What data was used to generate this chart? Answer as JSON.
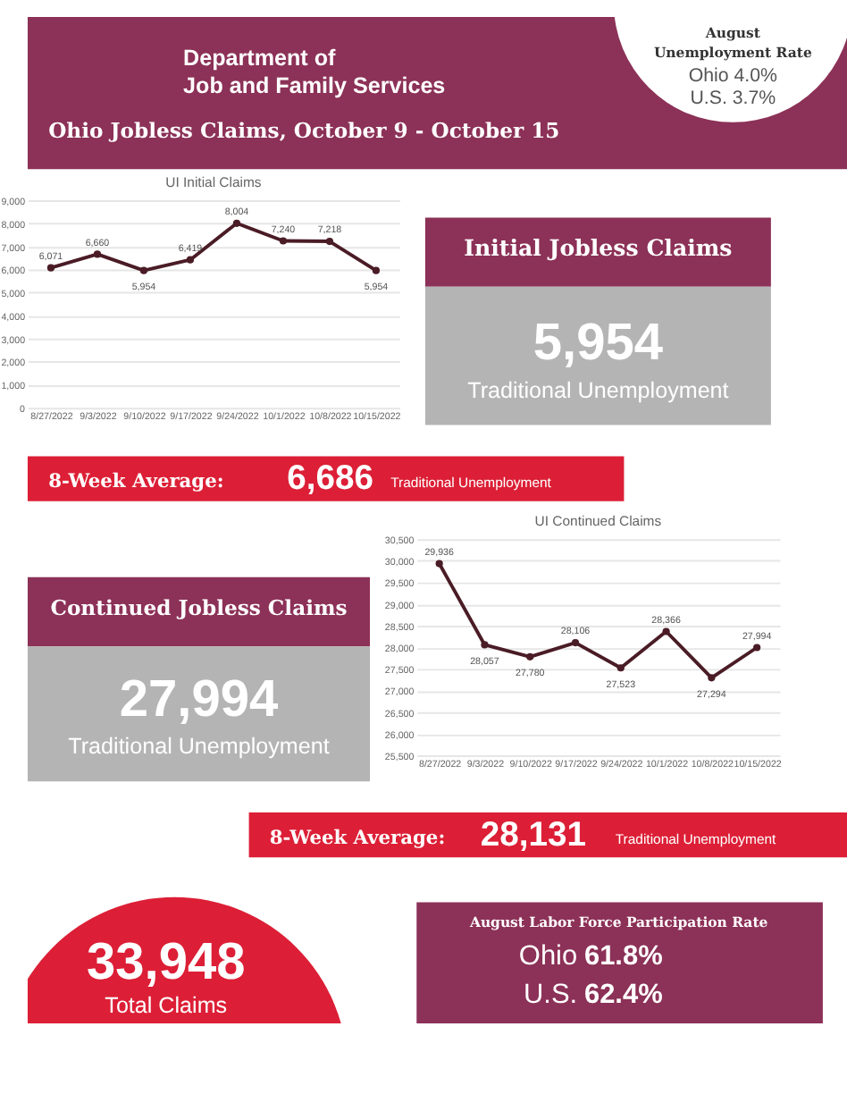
{
  "chart_data": [
    {
      "type": "other",
      "annotations": [
        "Department of",
        "Job and Family Services",
        "Ohio Jobless Claims, October 9 - October 15",
        "August",
        "Unemployment Rate",
        "Ohio  4.0%",
        "U.S.  3.7%"
      ]
    },
    {
      "type": "line",
      "title": "UI Initial Claims",
      "categories": [
        "8/27/2022",
        "9/3/2022",
        "9/10/2022",
        "9/17/2022",
        "9/24/2022",
        "10/1/2022",
        "10/8/2022",
        "10/15/2022"
      ],
      "values": [
        6071,
        6660,
        5954,
        6419,
        8004,
        7240,
        7218,
        5954
      ],
      "color": "#4a1c26",
      "ylim": [
        0,
        9000
      ],
      "yticks": [
        {
          "value": 0,
          "label": "0"
        },
        {
          "value": 1000,
          "label": "1,000"
        },
        {
          "value": 2000,
          "label": "2,000"
        },
        {
          "value": 3000,
          "label": "3,000"
        },
        {
          "value": 4000,
          "label": "4,000"
        },
        {
          "value": 5000,
          "label": "5,000"
        },
        {
          "value": 6000,
          "label": "6,000"
        },
        {
          "value": 7000,
          "label": "7,000"
        },
        {
          "value": 8000,
          "label": "8,000"
        },
        {
          "value": 9000,
          "label": "9,000"
        }
      ],
      "value_labels": [
        "6,071",
        "6,660",
        "5,954",
        "6,419",
        "8,004",
        "7,240",
        "7,218",
        "5,954"
      ],
      "grid": "y",
      "marker": "circle"
    },
    {
      "type": "other",
      "annotations": [
        "Initial Jobless Claims",
        "5,954",
        "Traditional Unemployment"
      ]
    },
    {
      "type": "other",
      "annotations": [
        "8-Week Average:",
        "6,686",
        "Traditional Unemployment"
      ]
    },
    {
      "type": "other",
      "annotations": [
        "Continued Jobless Claims",
        "27,994",
        "Traditional Unemployment"
      ]
    },
    {
      "type": "line",
      "title": "UI Continued Claims",
      "categories": [
        "8/27/2022",
        "9/3/2022",
        "9/10/2022",
        "9/17/2022",
        "9/24/2022",
        "10/1/2022",
        "10/8/2022",
        "10/15/2022"
      ],
      "values": [
        29936,
        28057,
        27780,
        28106,
        27523,
        28366,
        27294,
        27994
      ],
      "color": "#4a1c26",
      "ylim": [
        25500,
        30500
      ],
      "yticks": [
        {
          "value": 25500,
          "label": "25,500"
        },
        {
          "value": 26000,
          "label": "26,000"
        },
        {
          "value": 26500,
          "label": "26,500"
        },
        {
          "value": 27000,
          "label": "27,000"
        },
        {
          "value": 27500,
          "label": "27,500"
        },
        {
          "value": 28000,
          "label": "28,000"
        },
        {
          "value": 28500,
          "label": "28,500"
        },
        {
          "value": 29000,
          "label": "29,000"
        },
        {
          "value": 29500,
          "label": "29,500"
        },
        {
          "value": 30000,
          "label": "30,000"
        },
        {
          "value": 30500,
          "label": "30,500"
        }
      ],
      "value_labels": [
        "29,936",
        "28,057",
        "27,780",
        "28,106",
        "27,523",
        "28,366",
        "27,294",
        "27,994"
      ],
      "grid": "y",
      "marker": "circle"
    },
    {
      "type": "other",
      "annotations": [
        "8-Week Average:",
        "28,131",
        "Traditional Unemployment"
      ]
    },
    {
      "type": "other",
      "annotations": [
        "33,948",
        "Total Claims",
        "August Labor Force Participation Rate",
        "Ohio",
        "61.8%",
        "U.S.",
        "62.4%"
      ]
    }
  ]
}
